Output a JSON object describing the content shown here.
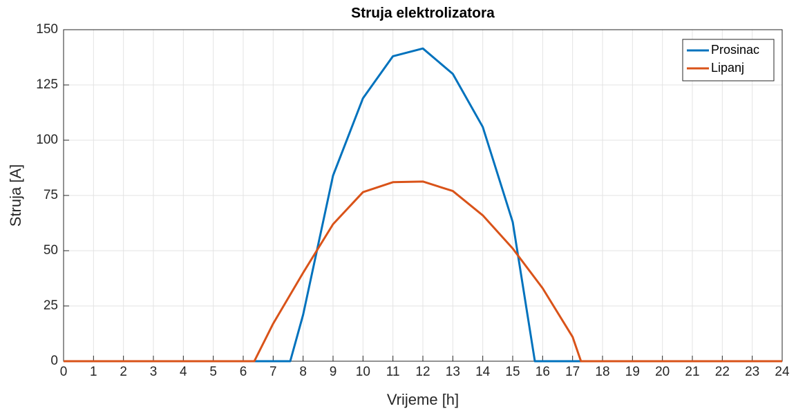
{
  "chart_data": {
    "type": "line",
    "title": "Struja elektrolizatora",
    "xlabel": "Vrijeme [h]",
    "ylabel": "Struja [A]",
    "series": [
      {
        "name": "Prosinac",
        "color": "#0072bd",
        "x": [
          0,
          1,
          2,
          3,
          4,
          5,
          6,
          7,
          7.57,
          8,
          9,
          10,
          11,
          12,
          13,
          14,
          15,
          15.74,
          16,
          17,
          18,
          19,
          20,
          21,
          22,
          23,
          24
        ],
        "values": [
          0,
          0,
          0,
          0,
          0,
          0,
          0,
          0,
          0,
          21,
          84,
          119,
          138,
          141.5,
          130,
          106,
          63,
          0,
          0,
          0,
          0,
          0,
          0,
          0,
          0,
          0,
          0
        ]
      },
      {
        "name": "Lipanj",
        "color": "#d95319",
        "x": [
          0,
          1,
          2,
          3,
          4,
          5,
          6,
          6.37,
          7,
          8,
          9,
          10,
          11,
          12,
          13,
          14,
          15,
          16,
          17,
          17.28,
          18,
          19,
          20,
          21,
          22,
          23,
          24
        ],
        "values": [
          0,
          0,
          0,
          0,
          0,
          0,
          0,
          0,
          17,
          40,
          62,
          76.5,
          81,
          81.3,
          77,
          66,
          51,
          33,
          11,
          0,
          0,
          0,
          0,
          0,
          0,
          0,
          0
        ]
      }
    ],
    "xlim": [
      0,
      24
    ],
    "xticks": [
      0,
      1,
      2,
      3,
      4,
      5,
      6,
      7,
      8,
      9,
      10,
      11,
      12,
      13,
      14,
      15,
      16,
      17,
      18,
      19,
      20,
      21,
      22,
      23,
      24
    ],
    "ylim": [
      0,
      150
    ],
    "yticks": [
      0,
      25,
      50,
      75,
      100,
      125,
      150
    ],
    "grid": true,
    "legend": "top-right"
  }
}
